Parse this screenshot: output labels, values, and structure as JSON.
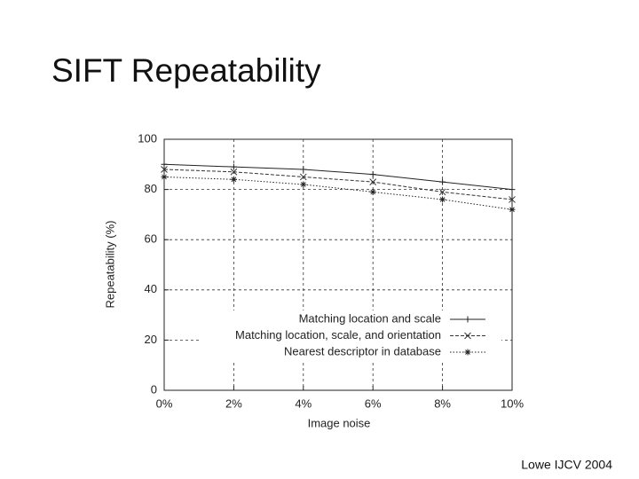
{
  "slide_title": "SIFT Repeatability",
  "footer": "Lowe IJCV 2004",
  "chart_data": {
    "type": "line",
    "x_label": "Image noise",
    "y_label": "Repeatability (%)",
    "x": [
      0,
      2,
      4,
      6,
      8,
      10
    ],
    "xlim": [
      0,
      10
    ],
    "xticks": [
      {
        "value": 0,
        "label": "0%"
      },
      {
        "value": 2,
        "label": "2%"
      },
      {
        "value": 4,
        "label": "4%"
      },
      {
        "value": 6,
        "label": "6%"
      },
      {
        "value": 8,
        "label": "8%"
      },
      {
        "value": 10,
        "label": "10%"
      }
    ],
    "ylim": [
      0,
      100
    ],
    "yticks": [
      0,
      20,
      40,
      60,
      80,
      100
    ],
    "grid": true,
    "legend": "lower right",
    "series": [
      {
        "name": "Matching location and scale",
        "color": "#222222",
        "dash": "solid",
        "marker": "+",
        "values": [
          90,
          89,
          88,
          86,
          83,
          80
        ]
      },
      {
        "name": "Matching location, scale, and orientation",
        "color": "#333333",
        "dash": "dashed",
        "marker": "x",
        "values": [
          88,
          87,
          85,
          83,
          79,
          76
        ]
      },
      {
        "name": "Nearest descriptor in database",
        "color": "#222222",
        "dash": "dotted",
        "marker": "*",
        "values": [
          85,
          84,
          82,
          79,
          76,
          72
        ]
      }
    ]
  }
}
